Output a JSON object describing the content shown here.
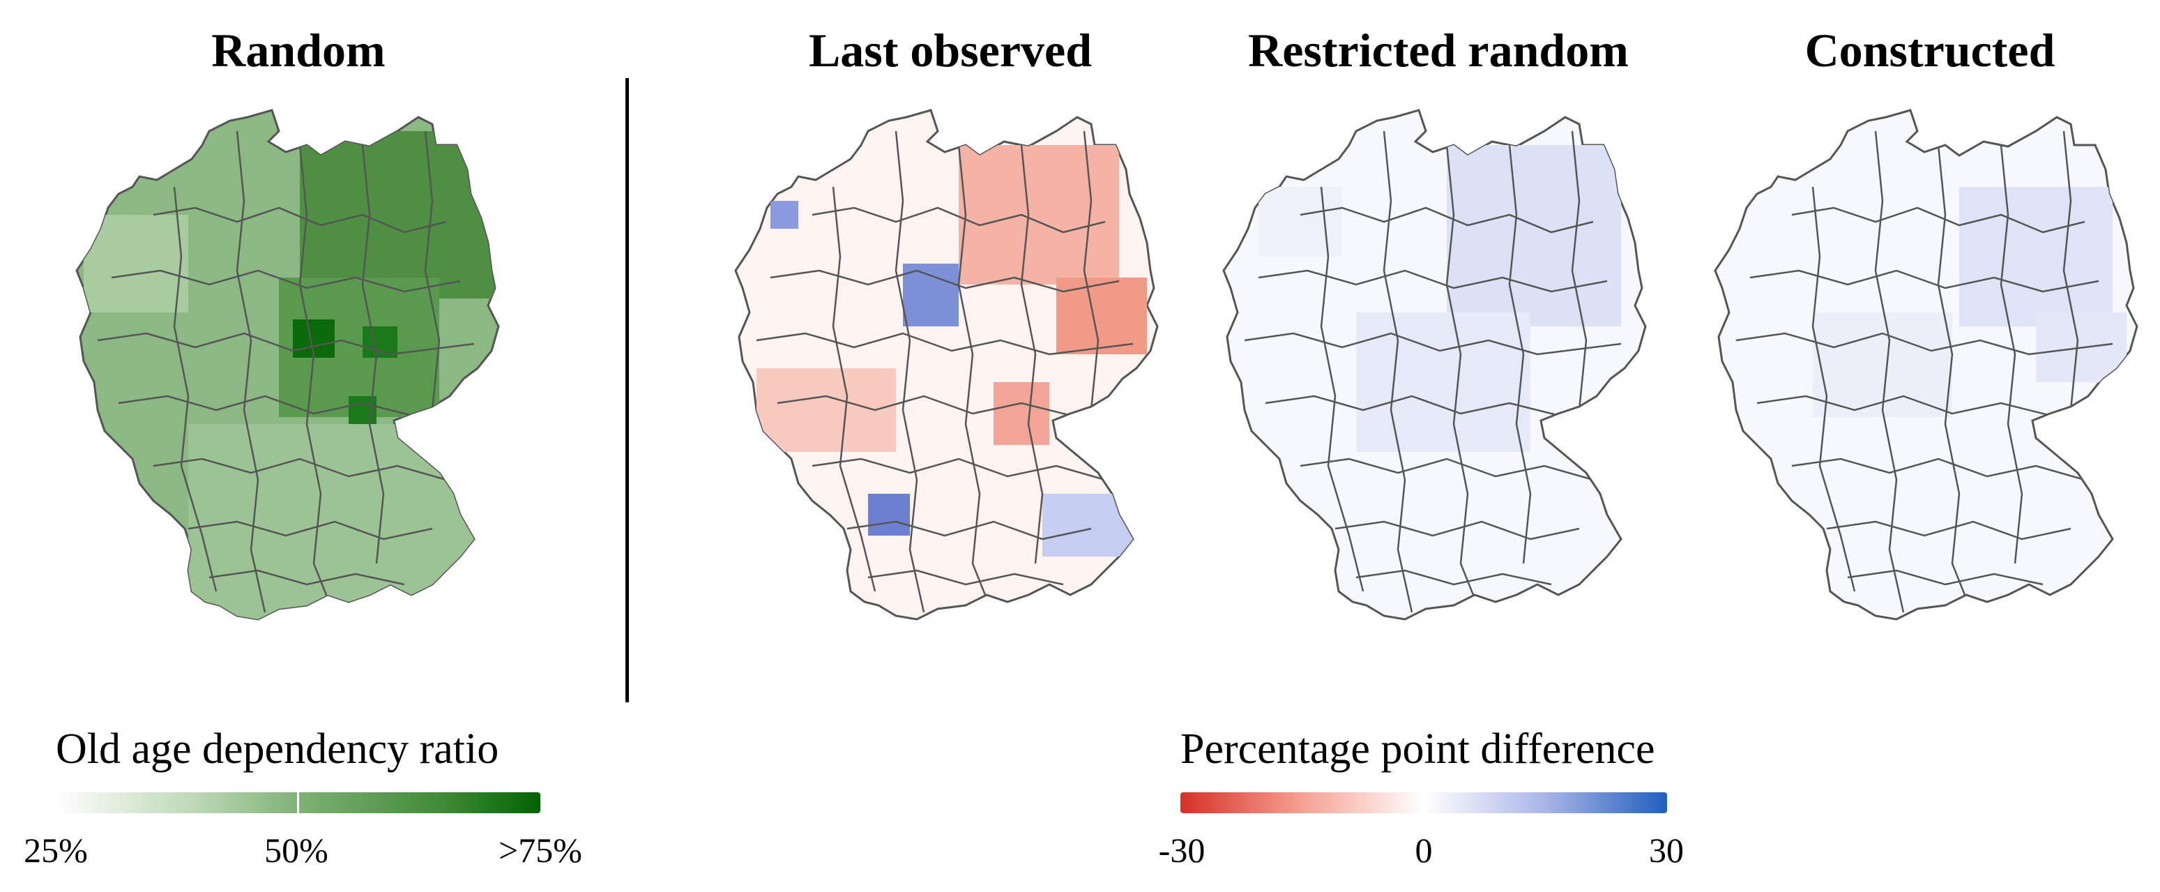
{
  "panels": {
    "random": {
      "title": "Random"
    },
    "last_observed": {
      "title": "Last observed"
    },
    "restricted_random": {
      "title": "Restricted random"
    },
    "constructed": {
      "title": "Constructed"
    }
  },
  "legend_left": {
    "title": "Old age dependency ratio",
    "ticks": [
      "25%",
      "50%",
      ">75%"
    ],
    "colors": {
      "low": "#f2f7f1",
      "mid": "#7fb276",
      "high": "#006400"
    }
  },
  "legend_right": {
    "title": "Percentage point difference",
    "ticks": [
      "-30",
      "0",
      "30"
    ],
    "colors": {
      "low": "#d73027",
      "mid": "#ffffff",
      "high": "#1f5fbf"
    }
  },
  "colors": {
    "border": "#555555",
    "divider": "#000000"
  }
}
